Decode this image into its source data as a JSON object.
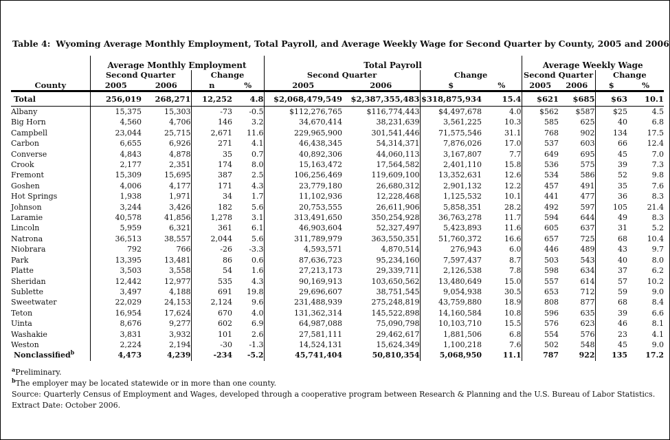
{
  "page": {
    "title_prefix": "Table 4:",
    "title_main": "Wyoming Average Monthly Employment, Total Payroll, and Average Weekly Wage for Second Quarter by County, 2005 and 2006",
    "title_sup": "a"
  },
  "table": {
    "groups": [
      {
        "label": "Average Monthly Employment"
      },
      {
        "label": "Total Payroll"
      },
      {
        "label": "Average Weekly Wage"
      }
    ],
    "subheaders": {
      "second_quarter": "Second Quarter",
      "change": "Change"
    },
    "columns": [
      "County",
      "2005",
      "2006",
      "n",
      "%",
      "2005",
      "2006",
      "$",
      "%",
      "2005",
      "2006",
      "$",
      "%"
    ],
    "total": {
      "county": "Total",
      "values": [
        "256,019",
        "268,271",
        "12,252",
        "4.8",
        "$2,068,479,549",
        "$2,387,355,483",
        "$318,875,934",
        "15.4",
        "$621",
        "$685",
        "$63",
        "10.1"
      ]
    },
    "rows": [
      {
        "county": "Albany",
        "values": [
          "15,375",
          "15,303",
          "-73",
          "-0.5",
          "$112,276,765",
          "$116,774,443",
          "$4,497,678",
          "4.0",
          "$562",
          "$587",
          "$25",
          "4.5"
        ]
      },
      {
        "county": "Big Horn",
        "values": [
          "4,560",
          "4,706",
          "146",
          "3.2",
          "34,670,414",
          "38,231,639",
          "3,561,225",
          "10.3",
          "585",
          "625",
          "40",
          "6.8"
        ]
      },
      {
        "county": "Campbell",
        "values": [
          "23,044",
          "25,715",
          "2,671",
          "11.6",
          "229,965,900",
          "301,541,446",
          "71,575,546",
          "31.1",
          "768",
          "902",
          "134",
          "17.5"
        ]
      },
      {
        "county": "Carbon",
        "values": [
          "6,655",
          "6,926",
          "271",
          "4.1",
          "46,438,345",
          "54,314,371",
          "7,876,026",
          "17.0",
          "537",
          "603",
          "66",
          "12.4"
        ]
      },
      {
        "county": "Converse",
        "values": [
          "4,843",
          "4,878",
          "35",
          "0.7",
          "40,892,306",
          "44,060,113",
          "3,167,807",
          "7.7",
          "649",
          "695",
          "45",
          "7.0"
        ]
      },
      {
        "county": "Crook",
        "values": [
          "2,177",
          "2,351",
          "174",
          "8.0",
          "15,163,472",
          "17,564,582",
          "2,401,110",
          "15.8",
          "536",
          "575",
          "39",
          "7.3"
        ]
      },
      {
        "county": "Fremont",
        "values": [
          "15,309",
          "15,695",
          "387",
          "2.5",
          "106,256,469",
          "119,609,100",
          "13,352,631",
          "12.6",
          "534",
          "586",
          "52",
          "9.8"
        ]
      },
      {
        "county": "Goshen",
        "values": [
          "4,006",
          "4,177",
          "171",
          "4.3",
          "23,779,180",
          "26,680,312",
          "2,901,132",
          "12.2",
          "457",
          "491",
          "35",
          "7.6"
        ]
      },
      {
        "county": "Hot Springs",
        "values": [
          "1,938",
          "1,971",
          "34",
          "1.7",
          "11,102,936",
          "12,228,468",
          "1,125,532",
          "10.1",
          "441",
          "477",
          "36",
          "8.3"
        ]
      },
      {
        "county": "Johnson",
        "values": [
          "3,244",
          "3,426",
          "182",
          "5.6",
          "20,753,555",
          "26,611,906",
          "5,858,351",
          "28.2",
          "492",
          "597",
          "105",
          "21.4"
        ]
      },
      {
        "county": "Laramie",
        "values": [
          "40,578",
          "41,856",
          "1,278",
          "3.1",
          "313,491,650",
          "350,254,928",
          "36,763,278",
          "11.7",
          "594",
          "644",
          "49",
          "8.3"
        ]
      },
      {
        "county": "Lincoln",
        "values": [
          "5,959",
          "6,321",
          "361",
          "6.1",
          "46,903,604",
          "52,327,497",
          "5,423,893",
          "11.6",
          "605",
          "637",
          "31",
          "5.2"
        ]
      },
      {
        "county": "Natrona",
        "values": [
          "36,513",
          "38,557",
          "2,044",
          "5.6",
          "311,789,979",
          "363,550,351",
          "51,760,372",
          "16.6",
          "657",
          "725",
          "68",
          "10.4"
        ]
      },
      {
        "county": "Niobrara",
        "values": [
          "792",
          "766",
          "-26",
          "-3.3",
          "4,593,571",
          "4,870,514",
          "276,943",
          "6.0",
          "446",
          "489",
          "43",
          "9.7"
        ]
      },
      {
        "county": "Park",
        "values": [
          "13,395",
          "13,481",
          "86",
          "0.6",
          "87,636,723",
          "95,234,160",
          "7,597,437",
          "8.7",
          "503",
          "543",
          "40",
          "8.0"
        ]
      },
      {
        "county": "Platte",
        "values": [
          "3,503",
          "3,558",
          "54",
          "1.6",
          "27,213,173",
          "29,339,711",
          "2,126,538",
          "7.8",
          "598",
          "634",
          "37",
          "6.2"
        ]
      },
      {
        "county": "Sheridan",
        "values": [
          "12,442",
          "12,977",
          "535",
          "4.3",
          "90,169,913",
          "103,650,562",
          "13,480,649",
          "15.0",
          "557",
          "614",
          "57",
          "10.2"
        ]
      },
      {
        "county": "Sublette",
        "values": [
          "3,497",
          "4,188",
          "691",
          "19.8",
          "29,696,607",
          "38,751,545",
          "9,054,938",
          "30.5",
          "653",
          "712",
          "59",
          "9.0"
        ]
      },
      {
        "county": "Sweetwater",
        "values": [
          "22,029",
          "24,153",
          "2,124",
          "9.6",
          "231,488,939",
          "275,248,819",
          "43,759,880",
          "18.9",
          "808",
          "877",
          "68",
          "8.4"
        ]
      },
      {
        "county": "Teton",
        "values": [
          "16,954",
          "17,624",
          "670",
          "4.0",
          "131,362,314",
          "145,522,898",
          "14,160,584",
          "10.8",
          "596",
          "635",
          "39",
          "6.6"
        ]
      },
      {
        "county": "Uinta",
        "values": [
          "8,676",
          "9,277",
          "602",
          "6.9",
          "64,987,088",
          "75,090,798",
          "10,103,710",
          "15.5",
          "576",
          "623",
          "46",
          "8.1"
        ]
      },
      {
        "county": "Washakie",
        "values": [
          "3,831",
          "3,932",
          "101",
          "2.6",
          "27,581,111",
          "29,462,617",
          "1,881,506",
          "6.8",
          "554",
          "576",
          "23",
          "4.1"
        ]
      },
      {
        "county": "Weston",
        "values": [
          "2,224",
          "2,194",
          "-30",
          "-1.3",
          "14,524,131",
          "15,624,349",
          "1,100,218",
          "7.6",
          "502",
          "548",
          "45",
          "9.0"
        ]
      },
      {
        "county": "Nonclassified",
        "sup": "b",
        "bold": true,
        "values": [
          "4,473",
          "4,239",
          "-234",
          "-5.2",
          "45,741,404",
          "50,810,354",
          "5,068,950",
          "11.1",
          "787",
          "922",
          "135",
          "17.2"
        ]
      }
    ]
  },
  "footnotes": [
    {
      "sup": "a",
      "text": "Preliminary."
    },
    {
      "sup": "b",
      "text": "The employer may be located statewide or in more than one county."
    },
    {
      "text": "Source: Quarterly Census of Employment and Wages, developed through a cooperative program between Research & Planning and the U.S. Bureau of Labor Statistics."
    },
    {
      "text": "Extract Date: October 2006."
    }
  ]
}
